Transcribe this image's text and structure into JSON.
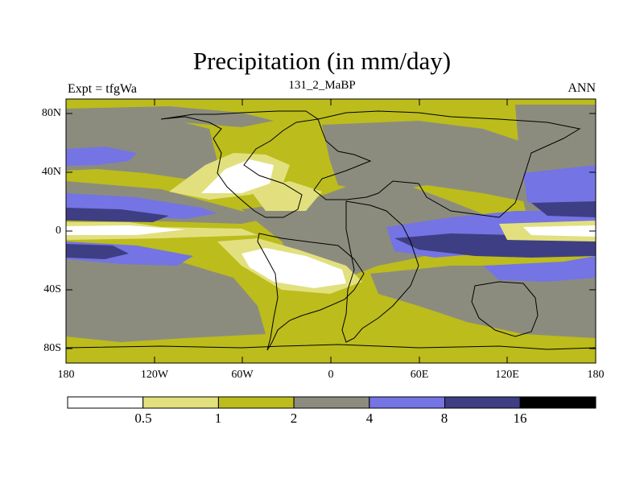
{
  "title": "Precipitation (in mm/day)",
  "left_subtitle": "Expt = tfgWa",
  "center_subtitle": "131_2_MaBP",
  "right_subtitle": "ANN",
  "latitude_labels": [
    "80N",
    "40N",
    "0",
    "40S",
    "80S"
  ],
  "longitude_labels": [
    "180",
    "120W",
    "60W",
    "0",
    "60E",
    "120E",
    "180"
  ],
  "colorbar": {
    "levels": [
      "0.5",
      "1",
      "2",
      "4",
      "8",
      "16"
    ],
    "colors": [
      "#ffffff",
      "#e2e07e",
      "#bcbc1c",
      "#8c8c7e",
      "#7474e4",
      "#3e3e84",
      "#000000"
    ]
  },
  "colors": {
    "pale_yellow": "#e2e07e",
    "olive": "#bcbc1c",
    "gray": "#8c8c7e",
    "periwinkle": "#7474e4",
    "navy": "#3e3e84",
    "white": "#ffffff",
    "coastline": "#000000"
  }
}
